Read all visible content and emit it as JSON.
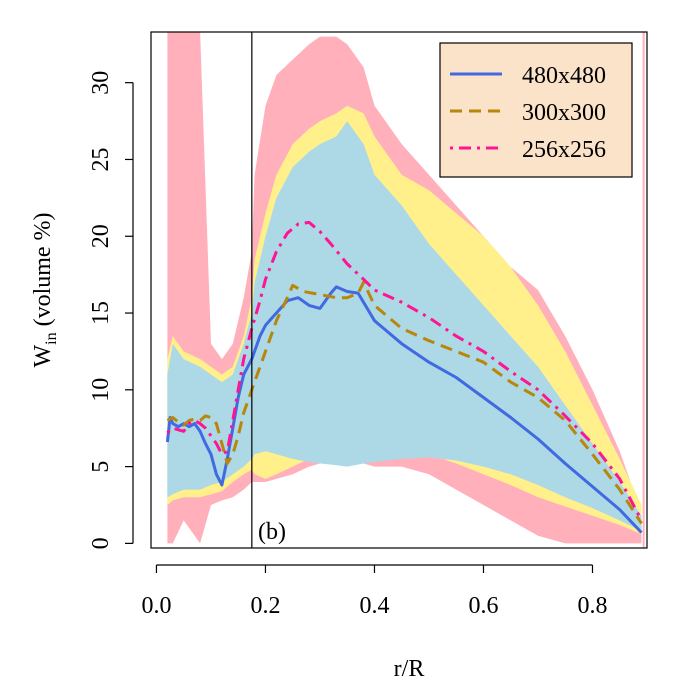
{
  "chart_data": {
    "type": "line",
    "xlabel": "r/R",
    "ylabel_main": "W",
    "ylabel_sub": "in",
    "ylabel_rest": " (volume %)",
    "xlim": [
      -0.01,
      0.9
    ],
    "ylim": [
      -0.3,
      33.3
    ],
    "x_ticks": [
      0.0,
      0.2,
      0.4,
      0.6,
      0.8
    ],
    "x_tick_labels": [
      "0.0",
      "0.2",
      "0.4",
      "0.6",
      "0.8"
    ],
    "y_ticks": [
      0,
      5,
      10,
      15,
      20,
      25,
      30
    ],
    "y_tick_labels": [
      "0",
      "5",
      "10",
      "15",
      "20",
      "25",
      "30"
    ],
    "annotation": "(b)",
    "vertical_line_x": 0.175,
    "legend_position": "top-right",
    "colors": {
      "band_outer": "#ffb0bb",
      "band_mid": "#fff08c",
      "band_inner": "#add8e6",
      "s480": "#4169e1",
      "s300": "#b8860b",
      "s256": "#ff1493"
    },
    "bands": {
      "x": [
        0.02,
        0.03,
        0.05,
        0.08,
        0.1,
        0.12,
        0.14,
        0.16,
        0.175,
        0.18,
        0.2,
        0.22,
        0.25,
        0.28,
        0.3,
        0.33,
        0.35,
        0.38,
        0.4,
        0.45,
        0.5,
        0.55,
        0.6,
        0.65,
        0.7,
        0.75,
        0.8,
        0.85,
        0.89
      ],
      "inner_low": [
        3.0,
        3.2,
        3.5,
        3.5,
        3.8,
        4.0,
        4.5,
        5.0,
        5.5,
        5.8,
        6.0,
        5.8,
        5.5,
        5.3,
        5.2,
        5.1,
        5.0,
        5.2,
        5.3,
        5.5,
        5.6,
        5.4,
        5.0,
        4.5,
        3.8,
        3.0,
        2.3,
        1.5,
        0.8
      ],
      "inner_high": [
        11.0,
        13.0,
        12.0,
        11.5,
        11.0,
        10.5,
        11.0,
        13.0,
        15.0,
        17.0,
        20.0,
        22.5,
        24.5,
        25.5,
        26.0,
        26.5,
        27.5,
        26.0,
        24.0,
        22.0,
        19.5,
        17.5,
        15.5,
        13.5,
        11.5,
        9.0,
        6.5,
        4.0,
        1.8
      ],
      "mid_low": [
        2.5,
        2.8,
        3.0,
        3.0,
        3.2,
        3.4,
        4.0,
        4.5,
        4.8,
        4.5,
        4.2,
        4.5,
        5.0,
        5.5,
        5.7,
        5.8,
        5.6,
        5.5,
        5.7,
        6.0,
        5.8,
        5.2,
        4.5,
        3.8,
        3.0,
        2.4,
        1.8,
        1.2,
        0.6
      ],
      "mid_high": [
        12.0,
        13.5,
        12.5,
        12.0,
        11.5,
        11.0,
        11.5,
        13.5,
        16.0,
        18.5,
        21.5,
        24.0,
        26.0,
        27.0,
        27.5,
        28.0,
        28.5,
        28.0,
        26.5,
        24.0,
        23.0,
        21.5,
        20.0,
        18.0,
        15.5,
        12.5,
        9.0,
        5.5,
        2.5
      ],
      "outer_low": [
        0.0,
        0.0,
        1.5,
        0.0,
        2.5,
        2.8,
        3.0,
        3.5,
        4.0,
        4.0,
        4.0,
        4.2,
        4.5,
        5.0,
        5.2,
        5.3,
        5.3,
        5.2,
        5.0,
        5.0,
        4.5,
        3.5,
        2.5,
        1.5,
        0.5,
        0.0,
        0.0,
        0.0,
        0.0
      ],
      "outer_high": [
        33.3,
        33.3,
        33.3,
        33.3,
        13.0,
        12.0,
        13.0,
        16.0,
        19.0,
        24.0,
        28.5,
        30.5,
        31.5,
        32.5,
        33.0,
        33.0,
        32.5,
        31.0,
        28.5,
        26.0,
        24.0,
        22.0,
        20.0,
        18.0,
        16.5,
        13.5,
        10.0,
        6.0,
        2.0
      ]
    },
    "series": [
      {
        "name": "480x480",
        "style": "solid",
        "x": [
          0.02,
          0.025,
          0.03,
          0.04,
          0.05,
          0.06,
          0.07,
          0.08,
          0.09,
          0.1,
          0.11,
          0.12,
          0.13,
          0.14,
          0.15,
          0.16,
          0.175,
          0.19,
          0.2,
          0.22,
          0.24,
          0.26,
          0.28,
          0.3,
          0.32,
          0.33,
          0.35,
          0.37,
          0.4,
          0.45,
          0.5,
          0.55,
          0.6,
          0.65,
          0.7,
          0.75,
          0.8,
          0.85,
          0.89
        ],
        "y": [
          6.6,
          8.2,
          7.8,
          7.6,
          7.8,
          7.6,
          7.8,
          7.3,
          6.5,
          5.8,
          4.5,
          3.8,
          5.5,
          7.5,
          9.5,
          11.0,
          12.0,
          13.5,
          14.2,
          15.0,
          15.8,
          16.0,
          15.5,
          15.3,
          16.3,
          16.7,
          16.4,
          16.3,
          14.5,
          13.0,
          11.8,
          10.8,
          9.5,
          8.2,
          6.8,
          5.2,
          3.7,
          2.2,
          0.7
        ]
      },
      {
        "name": "300x300",
        "style": "dashed",
        "x": [
          0.02,
          0.03,
          0.04,
          0.05,
          0.06,
          0.07,
          0.08,
          0.09,
          0.1,
          0.11,
          0.12,
          0.13,
          0.14,
          0.15,
          0.16,
          0.175,
          0.19,
          0.2,
          0.22,
          0.24,
          0.25,
          0.27,
          0.3,
          0.33,
          0.35,
          0.37,
          0.38,
          0.4,
          0.45,
          0.5,
          0.55,
          0.6,
          0.65,
          0.7,
          0.75,
          0.8,
          0.85,
          0.89
        ],
        "y": [
          8.0,
          8.2,
          7.9,
          7.7,
          8.0,
          8.1,
          8.0,
          8.3,
          8.2,
          7.8,
          6.5,
          5.2,
          5.8,
          7.0,
          8.5,
          10.0,
          11.5,
          12.5,
          14.5,
          16.0,
          16.8,
          16.4,
          16.2,
          16.0,
          16.0,
          16.3,
          17.0,
          15.5,
          14.0,
          13.2,
          12.5,
          11.8,
          10.5,
          9.5,
          8.0,
          5.8,
          3.5,
          1.3
        ]
      },
      {
        "name": "256x256",
        "style": "dotdash",
        "x": [
          0.02,
          0.03,
          0.04,
          0.05,
          0.06,
          0.07,
          0.08,
          0.09,
          0.1,
          0.11,
          0.12,
          0.13,
          0.14,
          0.15,
          0.16,
          0.175,
          0.19,
          0.2,
          0.22,
          0.24,
          0.26,
          0.28,
          0.3,
          0.32,
          0.35,
          0.38,
          0.4,
          0.45,
          0.5,
          0.55,
          0.6,
          0.65,
          0.7,
          0.75,
          0.8,
          0.85,
          0.89
        ],
        "y": [
          7.2,
          7.5,
          7.4,
          7.3,
          7.8,
          8.0,
          7.8,
          7.5,
          7.0,
          6.5,
          5.8,
          6.0,
          8.0,
          10.0,
          12.0,
          14.0,
          15.8,
          17.2,
          19.0,
          20.2,
          20.8,
          20.9,
          20.3,
          19.5,
          18.2,
          17.2,
          16.5,
          15.7,
          14.7,
          13.5,
          12.5,
          11.2,
          10.0,
          8.3,
          6.5,
          4.2,
          1.5
        ]
      }
    ]
  }
}
